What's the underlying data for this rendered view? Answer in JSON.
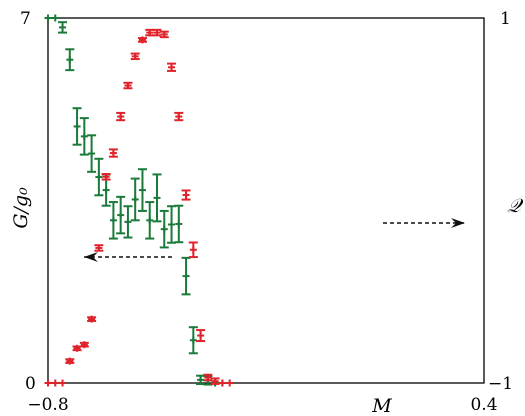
{
  "chart_data": {
    "type": "scatter",
    "title": "",
    "xlabel": "M",
    "ylabel_left": "G/g₀",
    "ylabel_right": "𝒬",
    "xlim": [
      -0.8,
      0.4
    ],
    "ylim_left": [
      0,
      7
    ],
    "ylim_right": [
      -1,
      1
    ],
    "x_tick_labels": [
      "−0.8",
      "0.4"
    ],
    "y_left_tick_labels": [
      "0",
      "7"
    ],
    "y_right_tick_labels": [
      "−1",
      "1"
    ],
    "grid": false,
    "colors": {
      "green": "#1a7a3a",
      "red": "#e0232b",
      "arrow": "#111111"
    },
    "series": [
      {
        "axis": "left",
        "marker": "cross-errorbar",
        "color": "#1a7a3a",
        "points": [
          {
            "x": -0.8,
            "y": 7.0,
            "err": 0.0
          },
          {
            "x": -0.78,
            "y": 7.0,
            "err": 0.0
          },
          {
            "x": -0.76,
            "y": 6.82,
            "err": 0.1
          },
          {
            "x": -0.74,
            "y": 6.2,
            "err": 0.2
          },
          {
            "x": -0.72,
            "y": 4.92,
            "err": 0.35
          },
          {
            "x": -0.7,
            "y": 4.73,
            "err": 0.35
          },
          {
            "x": -0.68,
            "y": 4.4,
            "err": 0.35
          },
          {
            "x": -0.66,
            "y": 3.95,
            "err": 0.35
          },
          {
            "x": -0.64,
            "y": 3.7,
            "err": 0.3
          },
          {
            "x": -0.62,
            "y": 3.12,
            "err": 0.35
          },
          {
            "x": -0.6,
            "y": 3.22,
            "err": 0.35
          },
          {
            "x": -0.58,
            "y": 3.09,
            "err": 0.3
          },
          {
            "x": -0.56,
            "y": 3.52,
            "err": 0.4
          },
          {
            "x": -0.54,
            "y": 3.7,
            "err": 0.4
          },
          {
            "x": -0.52,
            "y": 3.12,
            "err": 0.35
          },
          {
            "x": -0.5,
            "y": 3.55,
            "err": 0.45
          },
          {
            "x": -0.48,
            "y": 2.95,
            "err": 0.35
          },
          {
            "x": -0.46,
            "y": 3.04,
            "err": 0.35
          },
          {
            "x": -0.44,
            "y": 3.05,
            "err": 0.35
          },
          {
            "x": -0.42,
            "y": 2.05,
            "err": 0.35
          },
          {
            "x": -0.4,
            "y": 0.82,
            "err": 0.25
          },
          {
            "x": -0.38,
            "y": 0.06,
            "err": 0.08
          },
          {
            "x": -0.36,
            "y": 0.05,
            "err": 0.08
          },
          {
            "x": -0.34,
            "y": 0.0,
            "err": 0.0
          },
          {
            "x": -0.32,
            "y": 0.0,
            "err": 0.0
          }
        ]
      },
      {
        "axis": "right",
        "marker": "cross-errorbar",
        "color": "#e0232b",
        "points": [
          {
            "x": -0.8,
            "y": -1.0,
            "err": 0.0
          },
          {
            "x": -0.78,
            "y": -1.0,
            "err": 0.0
          },
          {
            "x": -0.76,
            "y": -1.0,
            "err": 0.0
          },
          {
            "x": -0.74,
            "y": -0.88,
            "err": 0.01
          },
          {
            "x": -0.72,
            "y": -0.81,
            "err": 0.01
          },
          {
            "x": -0.7,
            "y": -0.79,
            "err": 0.01
          },
          {
            "x": -0.68,
            "y": -0.65,
            "err": 0.01
          },
          {
            "x": -0.66,
            "y": -0.26,
            "err": 0.015
          },
          {
            "x": -0.64,
            "y": 0.13,
            "err": 0.015
          },
          {
            "x": -0.62,
            "y": 0.26,
            "err": 0.02
          },
          {
            "x": -0.6,
            "y": 0.46,
            "err": 0.02
          },
          {
            "x": -0.58,
            "y": 0.63,
            "err": 0.015
          },
          {
            "x": -0.56,
            "y": 0.79,
            "err": 0.015
          },
          {
            "x": -0.54,
            "y": 0.88,
            "err": 0.01
          },
          {
            "x": -0.52,
            "y": 0.92,
            "err": 0.015
          },
          {
            "x": -0.5,
            "y": 0.92,
            "err": 0.015
          },
          {
            "x": -0.48,
            "y": 0.91,
            "err": 0.015
          },
          {
            "x": -0.46,
            "y": 0.73,
            "err": 0.02
          },
          {
            "x": -0.44,
            "y": 0.46,
            "err": 0.02
          },
          {
            "x": -0.42,
            "y": 0.03,
            "err": 0.025
          },
          {
            "x": -0.4,
            "y": -0.27,
            "err": 0.04
          },
          {
            "x": -0.38,
            "y": -0.74,
            "err": 0.03
          },
          {
            "x": -0.36,
            "y": -0.97,
            "err": 0.015
          },
          {
            "x": -0.34,
            "y": -0.99,
            "err": 0.015
          },
          {
            "x": -0.32,
            "y": -1.0,
            "err": 0.0
          },
          {
            "x": -0.3,
            "y": -1.0,
            "err": 0.0
          }
        ]
      }
    ],
    "annotations": [
      {
        "type": "dashed-arrow",
        "direction": "left",
        "axis": "left"
      },
      {
        "type": "dashed-arrow",
        "direction": "right",
        "axis": "right"
      }
    ]
  }
}
